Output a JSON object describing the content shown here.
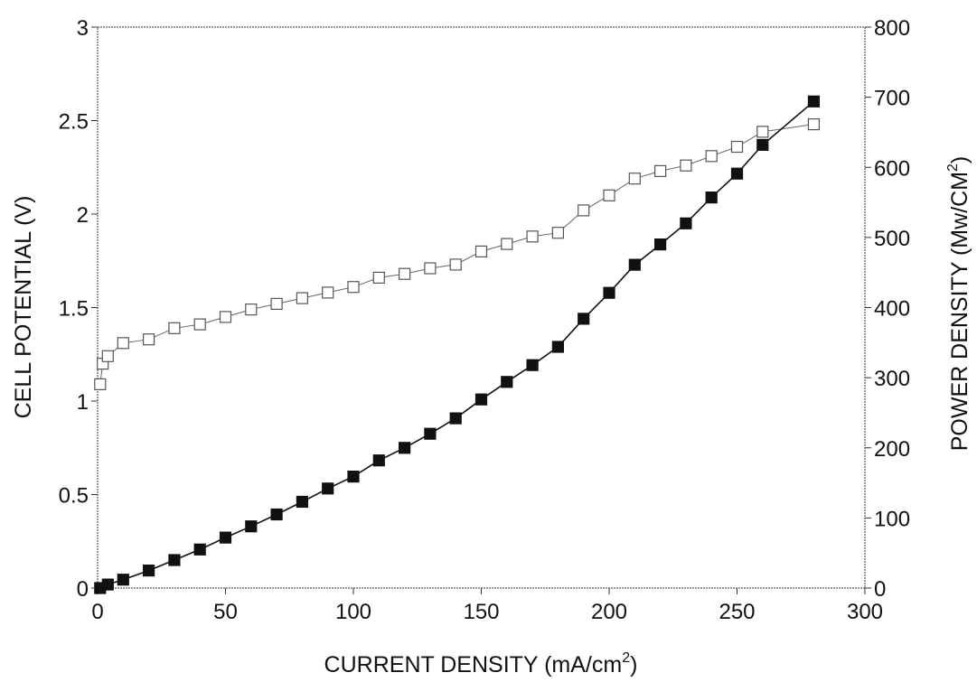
{
  "chart_data": {
    "type": "line",
    "title": "",
    "xlabel": "CURRENT DENSITY (mA/cm",
    "xlabel_sup": "2",
    "xlabel_end": ")",
    "ylabel_left": "CELL POTENTIAL (V)",
    "ylabel_right": "POWER DENSITY (Mw/CM",
    "ylabel_right_sup": "2",
    "ylabel_right_end": ")",
    "xlim": [
      0,
      300
    ],
    "ylim_left": [
      0,
      3
    ],
    "ylim_right": [
      0,
      800
    ],
    "x_ticks": [
      "0",
      "50",
      "100",
      "150",
      "200",
      "250",
      "300"
    ],
    "y_left_ticks": [
      "0",
      "0.5",
      "1",
      "1.5",
      "2",
      "2.5",
      "3"
    ],
    "y_right_ticks": [
      "0",
      "100",
      "200",
      "300",
      "400",
      "500",
      "600",
      "700",
      "800"
    ],
    "grid": false,
    "legend": "none",
    "series": [
      {
        "axis": "left",
        "marker": "open-square",
        "color": "#666666",
        "points": [
          [
            1,
            1.09
          ],
          [
            2,
            1.2
          ],
          [
            4,
            1.24
          ],
          [
            10,
            1.31
          ],
          [
            20,
            1.33
          ],
          [
            30,
            1.39
          ],
          [
            40,
            1.41
          ],
          [
            50,
            1.45
          ],
          [
            60,
            1.49
          ],
          [
            70,
            1.52
          ],
          [
            80,
            1.55
          ],
          [
            90,
            1.58
          ],
          [
            100,
            1.61
          ],
          [
            110,
            1.66
          ],
          [
            120,
            1.68
          ],
          [
            130,
            1.71
          ],
          [
            140,
            1.73
          ],
          [
            150,
            1.8
          ],
          [
            160,
            1.84
          ],
          [
            170,
            1.88
          ],
          [
            180,
            1.9
          ],
          [
            190,
            2.02
          ],
          [
            200,
            2.1
          ],
          [
            210,
            2.19
          ],
          [
            220,
            2.23
          ],
          [
            230,
            2.26
          ],
          [
            240,
            2.31
          ],
          [
            250,
            2.36
          ],
          [
            260,
            2.44
          ],
          [
            280,
            2.48
          ]
        ]
      },
      {
        "axis": "right",
        "marker": "filled-square",
        "color": "#111111",
        "points": [
          [
            1,
            0
          ],
          [
            4,
            5
          ],
          [
            10,
            12
          ],
          [
            20,
            25
          ],
          [
            30,
            40
          ],
          [
            40,
            55
          ],
          [
            50,
            72
          ],
          [
            60,
            88
          ],
          [
            70,
            105
          ],
          [
            80,
            123
          ],
          [
            90,
            142
          ],
          [
            100,
            159
          ],
          [
            110,
            182
          ],
          [
            120,
            200
          ],
          [
            130,
            220
          ],
          [
            140,
            242
          ],
          [
            150,
            269
          ],
          [
            160,
            294
          ],
          [
            170,
            318
          ],
          [
            180,
            344
          ],
          [
            190,
            384
          ],
          [
            200,
            421
          ],
          [
            210,
            461
          ],
          [
            220,
            490
          ],
          [
            230,
            520
          ],
          [
            240,
            557
          ],
          [
            250,
            591
          ],
          [
            260,
            632
          ],
          [
            280,
            694
          ]
        ]
      }
    ]
  }
}
